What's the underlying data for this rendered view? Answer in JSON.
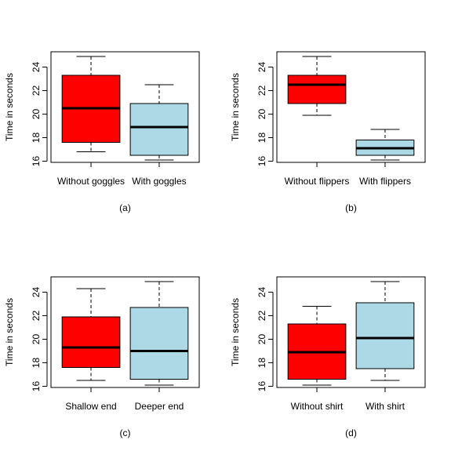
{
  "colors": {
    "first_box": "#ff0000",
    "second_box": "#add8e6",
    "stroke": "#000000",
    "background": "#ffffff"
  },
  "chart_data": [
    {
      "type": "box",
      "caption": "(a)",
      "ylabel": "Time in seconds",
      "ylim": [
        15.9,
        25.3
      ],
      "yticks": [
        16,
        18,
        20,
        22,
        24
      ],
      "categories": [
        "Without goggles",
        "With goggles"
      ],
      "boxes": [
        {
          "min": 16.8,
          "q1": 17.6,
          "median": 20.5,
          "q3": 23.3,
          "max": 24.9
        },
        {
          "min": 16.1,
          "q1": 16.5,
          "median": 18.9,
          "q3": 20.9,
          "max": 22.5
        }
      ]
    },
    {
      "type": "box",
      "caption": "(b)",
      "ylabel": "Time in seconds",
      "ylim": [
        15.9,
        25.3
      ],
      "yticks": [
        16,
        18,
        20,
        22,
        24
      ],
      "categories": [
        "Without flippers",
        "With  flippers"
      ],
      "boxes": [
        {
          "min": 19.9,
          "q1": 20.9,
          "median": 22.5,
          "q3": 23.3,
          "max": 24.9
        },
        {
          "min": 16.1,
          "q1": 16.5,
          "median": 17.1,
          "q3": 17.8,
          "max": 18.7
        }
      ]
    },
    {
      "type": "box",
      "caption": "(c)",
      "ylabel": "Time in seconds",
      "ylim": [
        15.9,
        25.3
      ],
      "yticks": [
        16,
        18,
        20,
        22,
        24
      ],
      "categories": [
        "Shallow end",
        "Deeper end"
      ],
      "boxes": [
        {
          "min": 16.5,
          "q1": 17.6,
          "median": 19.3,
          "q3": 21.9,
          "max": 24.3
        },
        {
          "min": 16.1,
          "q1": 16.6,
          "median": 19.0,
          "q3": 22.7,
          "max": 24.9
        }
      ]
    },
    {
      "type": "box",
      "caption": "(d)",
      "ylabel": "Time in seconds",
      "ylim": [
        15.9,
        25.3
      ],
      "yticks": [
        16,
        18,
        20,
        22,
        24
      ],
      "categories": [
        "Without shirt",
        "With shirt"
      ],
      "boxes": [
        {
          "min": 16.1,
          "q1": 16.6,
          "median": 18.9,
          "q3": 21.3,
          "max": 22.8
        },
        {
          "min": 16.5,
          "q1": 17.5,
          "median": 20.1,
          "q3": 23.1,
          "max": 24.9
        }
      ]
    }
  ]
}
